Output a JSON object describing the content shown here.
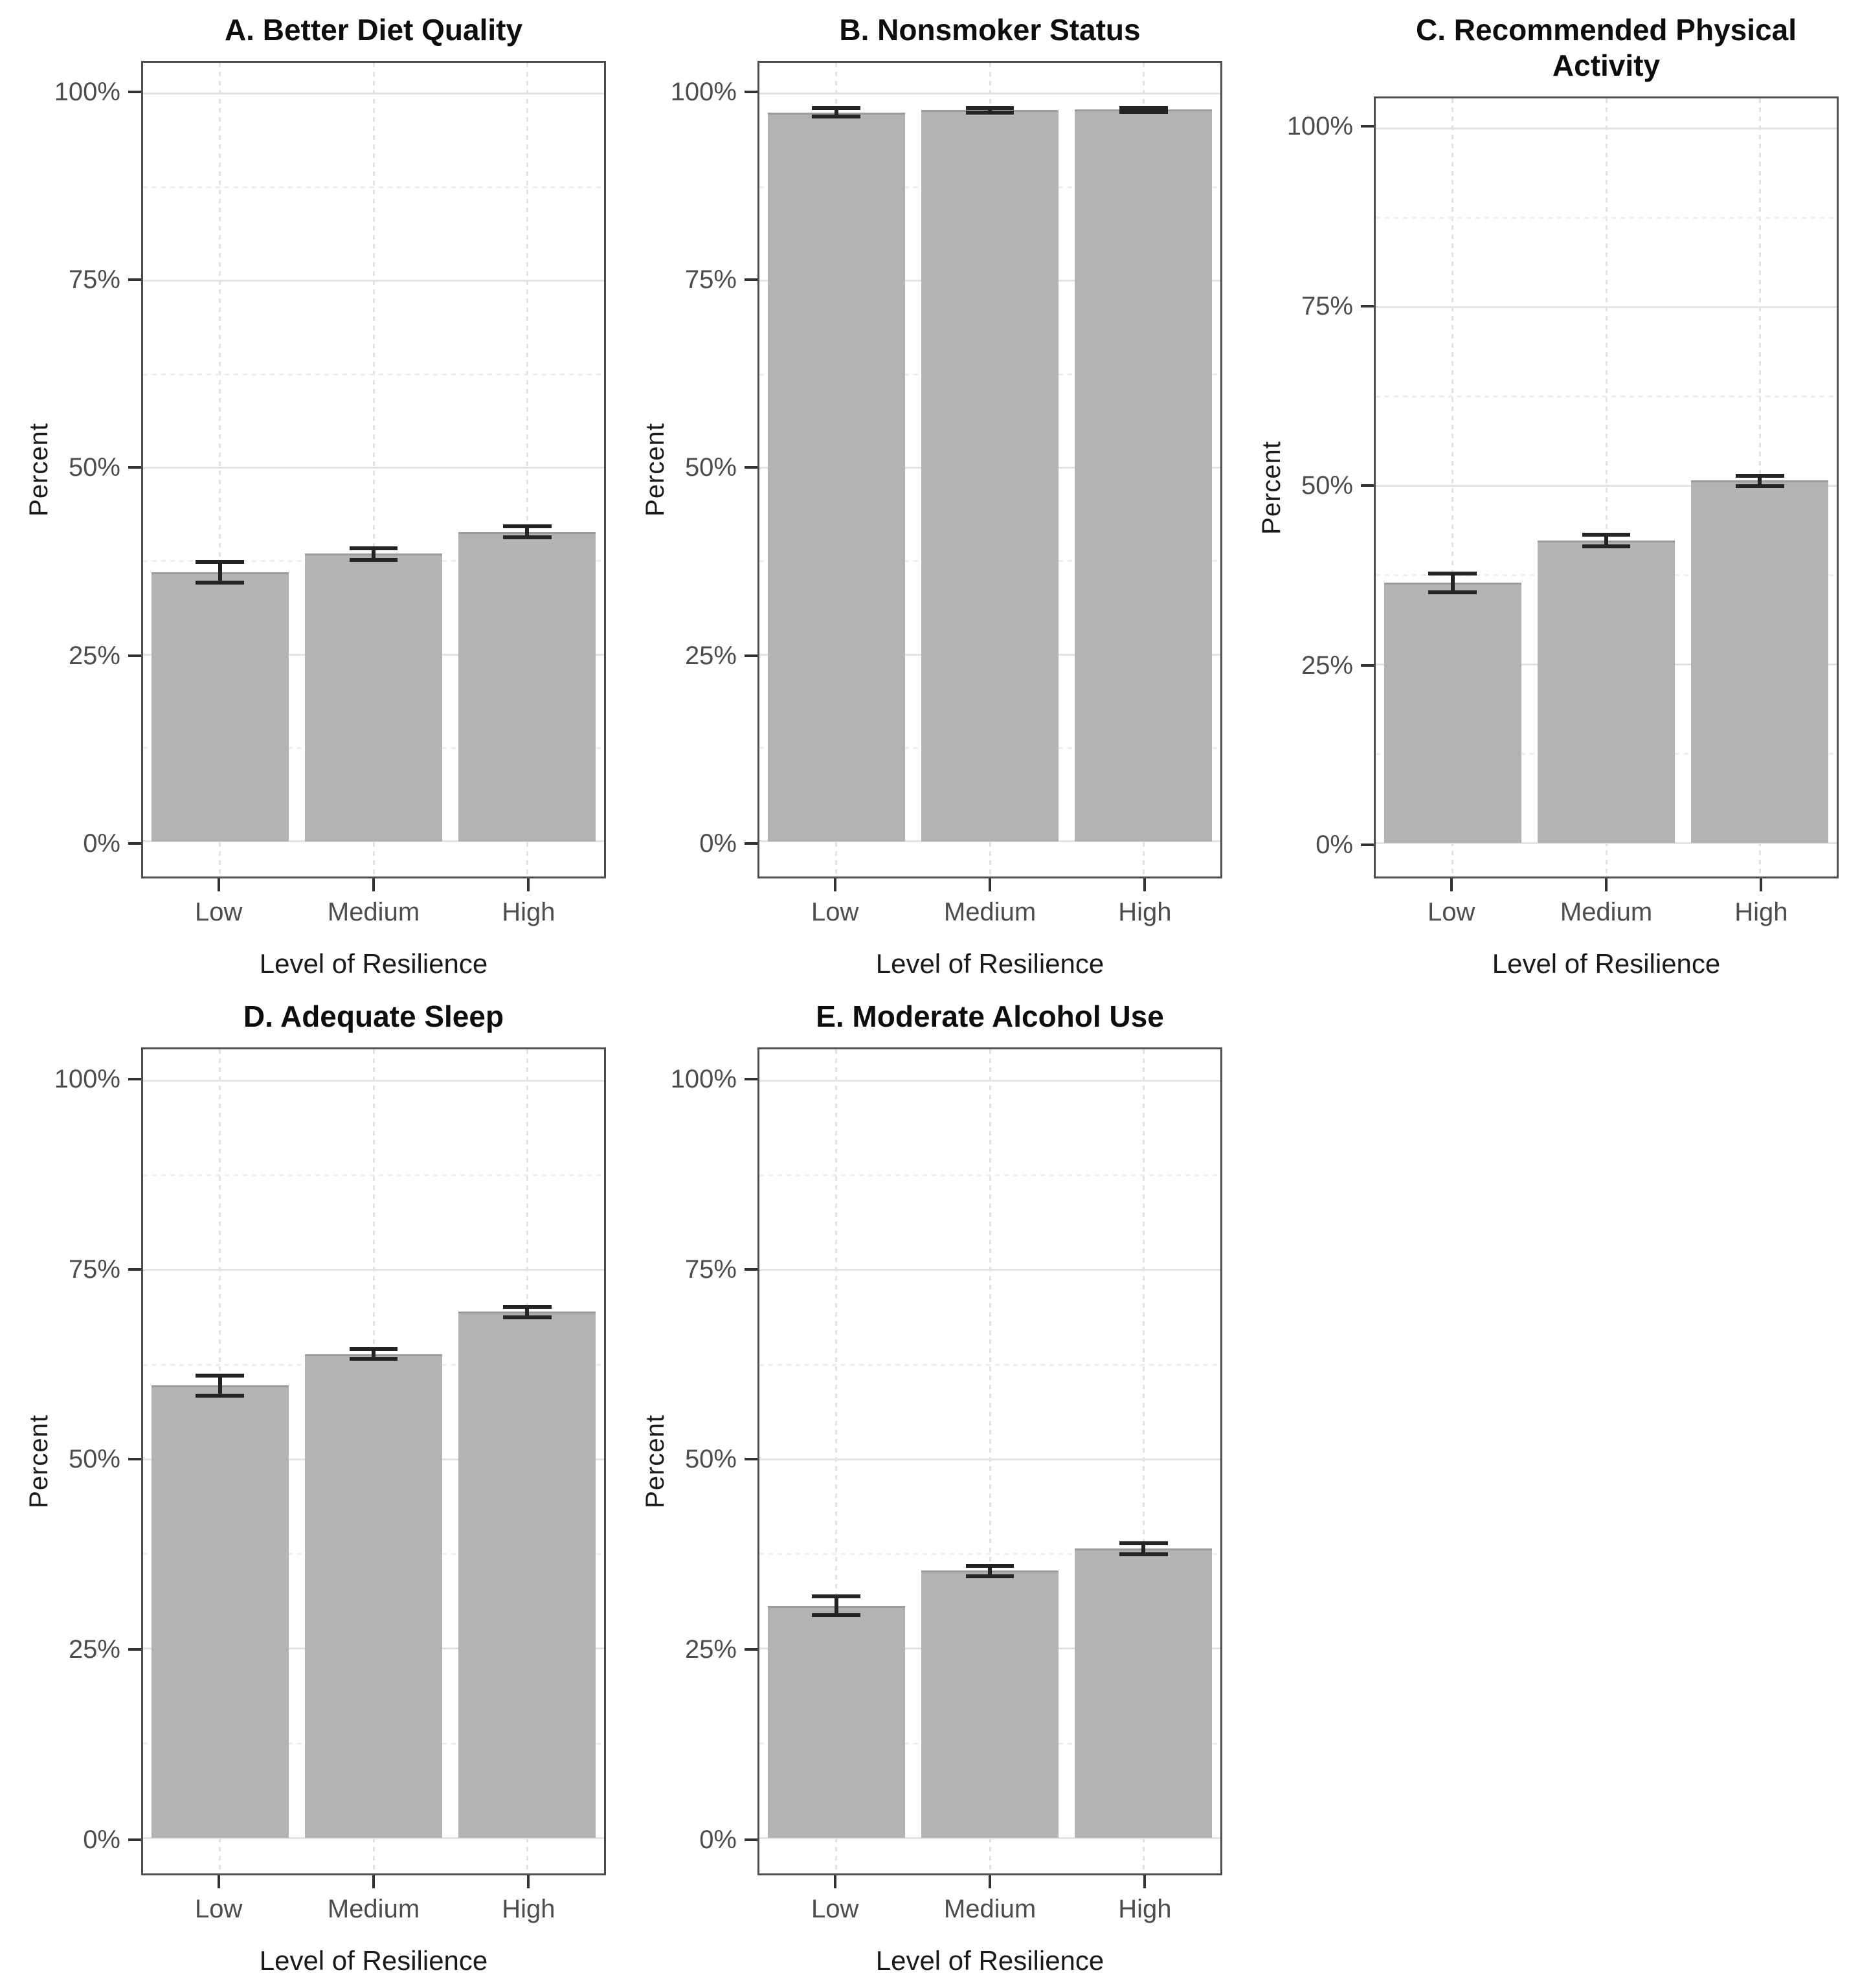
{
  "figure": {
    "type": "multi-panel bar chart figure",
    "background": "#ffffff",
    "rows": 2,
    "columns": 3,
    "empty_cells": [
      "row 2, column 3"
    ]
  },
  "styles": {
    "bar_fill": "#b3b3b3",
    "bar_edge": "#9c9c9c",
    "error_bar_color": "#242424",
    "plot_border": "#4d4d4d",
    "grid_major": "#e3e3e3",
    "grid_minor": "#ededed",
    "tick_color": "#333333",
    "tick_label_color": "#4d4d4d",
    "title_color": "#0d0d0d",
    "axis_title_color": "#1a1a1a"
  },
  "axes": {
    "y_title": "Percent",
    "x_title": "Level of Resilience",
    "x_categories": [
      "Low",
      "Medium",
      "High"
    ],
    "y_ticks": [
      {
        "value": 0,
        "label": "0%"
      },
      {
        "value": 25,
        "label": "25%"
      },
      {
        "value": 50,
        "label": "50%"
      },
      {
        "value": 75,
        "label": "75%"
      },
      {
        "value": 100,
        "label": "100%"
      }
    ],
    "y_minor": [
      12.5,
      37.5,
      62.5,
      87.5
    ],
    "band_centers_pct": [
      16.667,
      50,
      83.333
    ]
  },
  "chart_data": [
    {
      "type": "bar",
      "title": "A. Better Diet Quality",
      "categories": [
        "Low",
        "Medium",
        "High"
      ],
      "values": [
        36.0,
        38.5,
        41.4
      ],
      "err_low": [
        34.6,
        37.7,
        40.7
      ],
      "err_high": [
        37.4,
        39.2,
        42.2
      ],
      "xlabel": "Level of Resilience",
      "ylabel": "Percent",
      "ylim": [
        0,
        100
      ],
      "grid": "on",
      "legend": "none"
    },
    {
      "type": "bar",
      "title": "B. Nonsmoker Status",
      "categories": [
        "Low",
        "Medium",
        "High"
      ],
      "values": [
        97.5,
        97.8,
        97.9
      ],
      "err_low": [
        97.0,
        97.5,
        97.6
      ],
      "err_high": [
        98.1,
        98.1,
        98.1
      ],
      "xlabel": "Level of Resilience",
      "ylabel": "Percent",
      "ylim": [
        0,
        100
      ],
      "grid": "on",
      "legend": "none"
    },
    {
      "type": "bar",
      "title": "C. Recommended Physical Activity",
      "categories": [
        "Low",
        "Medium",
        "High"
      ],
      "values": [
        36.4,
        42.3,
        50.7
      ],
      "err_low": [
        35.1,
        41.5,
        49.9
      ],
      "err_high": [
        37.7,
        43.1,
        51.4
      ],
      "xlabel": "Level of Resilience",
      "ylabel": "Percent",
      "ylim": [
        0,
        100
      ],
      "grid": "on",
      "legend": "none"
    },
    {
      "type": "bar",
      "title": "D. Adequate Sleep",
      "categories": [
        "Low",
        "Medium",
        "High"
      ],
      "values": [
        59.8,
        63.9,
        69.5
      ],
      "err_low": [
        58.4,
        63.3,
        68.8
      ],
      "err_high": [
        61.1,
        64.6,
        70.1
      ],
      "xlabel": "Level of Resilience",
      "ylabel": "Percent",
      "ylim": [
        0,
        100
      ],
      "grid": "on",
      "legend": "none"
    },
    {
      "type": "bar",
      "title": "E. Moderate Alcohol Use",
      "categories": [
        "Low",
        "Medium",
        "High"
      ],
      "values": [
        30.6,
        35.3,
        38.2
      ],
      "err_low": [
        29.4,
        34.6,
        37.5
      ],
      "err_high": [
        31.9,
        35.9,
        38.9
      ],
      "xlabel": "Level of Resilience",
      "ylabel": "Percent",
      "ylim": [
        0,
        100
      ],
      "grid": "on",
      "legend": "none"
    }
  ],
  "scale": {
    "plot_pad_bottom_pct": 4.3,
    "plot_pad_top_pct": 3.8
  }
}
